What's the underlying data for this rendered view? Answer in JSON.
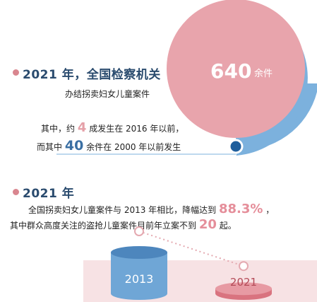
{
  "section1": {
    "title": "2021 年，全国检察机关",
    "subtitle": "办结拐卖妇女儿童案件",
    "total_value": "640",
    "total_unit": "余件",
    "line1_prefix": "其中，约",
    "line1_num": "4",
    "line1_suffix": "成发生在 2016 年以前，",
    "line2_prefix": "而其中",
    "line2_num": "40",
    "line2_suffix": "余件在 2000 年以前发生"
  },
  "section2": {
    "title": "2021 年",
    "line1_text": "全国拐卖妇女儿童案件与 2013 年相比，降幅达到",
    "line1_num": "88.3%",
    "line1_end": "，",
    "line2_text": "其中群众高度关注的盗抢儿童案件目前年立案不到",
    "line2_num": "20",
    "line2_end": "起。"
  },
  "chart_data": [
    {
      "type": "pie",
      "slices": [
        {
          "value": 640,
          "label": "640 余件"
        },
        {
          "value": 0.4,
          "label": "约 4 成发生在 2016 年以前"
        }
      ]
    },
    {
      "type": "bar",
      "categories": [
        "2013",
        "2021"
      ],
      "values": [
        1,
        0.117
      ]
    }
  ],
  "colors": {
    "pink": "#e8a4ac",
    "blue": "#7cb1dd",
    "dark_blue": "#2a4b6e",
    "accent_blue": "#3a6fa3",
    "accent_pink": "#e58e9a"
  }
}
